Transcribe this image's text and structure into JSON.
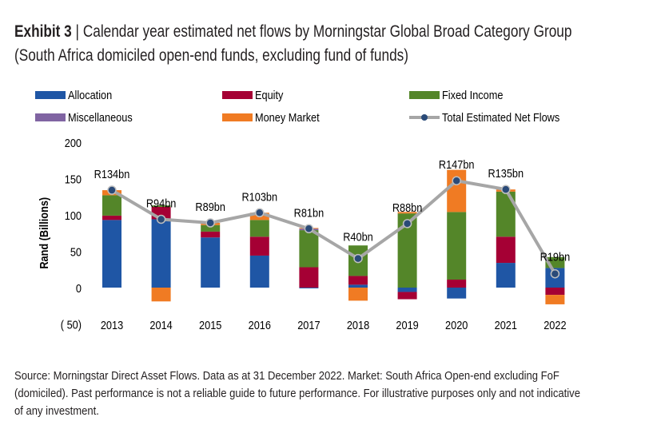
{
  "header": {
    "exhibit": "Exhibit 3",
    "separator": " | ",
    "title": "Calendar year estimated net flows by Morningstar Global Broad Category Group",
    "subtitle": "(South Africa domiciled open-end funds, excluding fund of funds)"
  },
  "source": "Source: Morningstar Direct Asset Flows. Data as at 31 December 2022. Market: South Africa Open-end excluding FoF (domiciled). Past performance is not a reliable guide to future performance. For illustrative purposes only and not indicative of any investment.",
  "chart_data": {
    "type": "bar",
    "stacked": true,
    "categories": [
      "2013",
      "2014",
      "2015",
      "2016",
      "2017",
      "2018",
      "2019",
      "2020",
      "2021",
      "2022"
    ],
    "ylabel": "Rand (Billions)",
    "ylim": [
      -50,
      200
    ],
    "yticks": [
      200,
      150,
      100,
      50,
      0,
      -50
    ],
    "ytick_labels": [
      "200",
      "150",
      "100",
      "50",
      "0",
      "( 50)"
    ],
    "grid": false,
    "legend_position": "top",
    "series": [
      {
        "name": "Allocation",
        "color": "#1f56a5",
        "values": [
          93,
          94,
          69,
          44,
          -1,
          4,
          -6,
          -15,
          34,
          27
        ]
      },
      {
        "name": "Equity",
        "color": "#a50034",
        "values": [
          6,
          17,
          8,
          26,
          28,
          12,
          -10,
          11,
          36,
          -10
        ]
      },
      {
        "name": "Fixed Income",
        "color": "#548629",
        "values": [
          28,
          2,
          9,
          23,
          51,
          42,
          102,
          93,
          62,
          15
        ]
      },
      {
        "name": "Miscellaneous",
        "color": "#8064a2",
        "values": [
          0,
          0,
          0,
          0,
          2,
          0,
          0,
          0,
          0,
          0
        ]
      },
      {
        "name": "Money Market",
        "color": "#f07b23",
        "values": [
          7,
          -19,
          3,
          10,
          1,
          -18,
          2,
          58,
          3,
          -13
        ]
      }
    ],
    "line": {
      "name": "Total Estimated Net Flows",
      "color": "#a6a6a6",
      "marker_color": "#2a4a78",
      "values": [
        134,
        94,
        89,
        103,
        81,
        40,
        88,
        147,
        135,
        19
      ],
      "labels": [
        "R134bn",
        "R94bn",
        "R89bn",
        "R103bn",
        "R81bn",
        "R40bn",
        "R88bn",
        "R147bn",
        "R135bn",
        "R19bn"
      ]
    }
  }
}
